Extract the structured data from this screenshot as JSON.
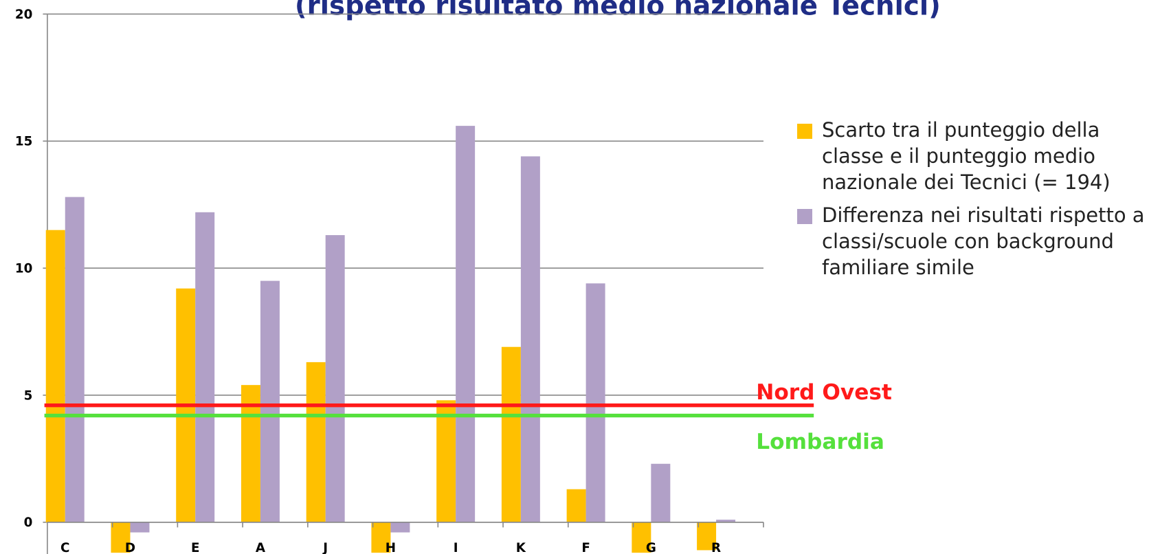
{
  "chart_data": {
    "type": "bar",
    "title": "(rispetto risultato medio nazionale Tecnici)",
    "categories": [
      "C",
      "D",
      "E",
      "A",
      "J",
      "H",
      "I",
      "K",
      "F",
      "G",
      "R"
    ],
    "series": [
      {
        "name": "Scarto tra il punteggio della classe e il punteggio medio nazionale dei Tecnici (= 194)",
        "color": "#ffc000",
        "values": [
          11.5,
          -1.2,
          9.2,
          5.4,
          6.3,
          -1.2,
          4.8,
          6.9,
          1.3,
          -1.2,
          -1.1
        ]
      },
      {
        "name": "Differenza nei risultati rispetto a classi/scuole con background familiare simile",
        "color": "#b1a0c7",
        "values": [
          12.8,
          -0.4,
          12.2,
          9.5,
          11.3,
          -0.4,
          15.6,
          14.4,
          9.4,
          2.3,
          0.1
        ]
      }
    ],
    "reference_lines": [
      {
        "name": "Nord Ovest",
        "value": 4.6,
        "color": "#ff1a1a"
      },
      {
        "name": "Lombardia",
        "value": 4.2,
        "color": "#55e03c"
      }
    ],
    "ylim": [
      -1.25,
      20
    ],
    "yticks": [
      0,
      5,
      10,
      15,
      20
    ],
    "grid": true,
    "legend": "right"
  }
}
